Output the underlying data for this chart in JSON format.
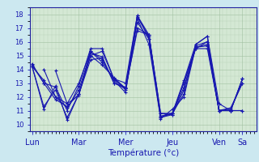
{
  "title": "Température (°c)",
  "bg_color": "#cce8f0",
  "plot_bg_color": "#d4e8d4",
  "line_color": "#1818b0",
  "marker": "+",
  "ylim": [
    9.5,
    18.5
  ],
  "yticks": [
    10,
    11,
    12,
    13,
    14,
    15,
    16,
    17,
    18
  ],
  "day_labels": [
    "Lun",
    "Mar",
    "Mer",
    "Jeu",
    "Ven",
    "Sa"
  ],
  "day_x": [
    0,
    1,
    2,
    3,
    4,
    4.5
  ],
  "series": [
    {
      "start_day": 0,
      "points": [
        [
          0,
          14.2
        ],
        [
          0.25,
          11.1
        ],
        [
          0.5,
          12.8
        ],
        [
          0.75,
          10.3
        ],
        [
          1,
          12.2
        ],
        [
          1.25,
          15.0
        ],
        [
          1.5,
          15.3
        ],
        [
          1.75,
          13.3
        ],
        [
          2,
          12.6
        ],
        [
          2.25,
          17.8
        ],
        [
          2.5,
          16.4
        ],
        [
          2.75,
          10.5
        ],
        [
          3,
          10.7
        ],
        [
          3.25,
          12.5
        ],
        [
          3.5,
          15.8
        ],
        [
          3.75,
          16.4
        ],
        [
          4,
          11.0
        ],
        [
          4.25,
          11.0
        ],
        [
          4.5,
          13.3
        ]
      ]
    },
    {
      "start_day": 0.25,
      "points": [
        [
          0.25,
          14.0
        ],
        [
          0.5,
          12.0
        ],
        [
          0.75,
          11.2
        ],
        [
          1,
          12.5
        ],
        [
          1.25,
          15.2
        ],
        [
          1.5,
          14.9
        ],
        [
          1.75,
          13.0
        ],
        [
          2,
          12.6
        ],
        [
          2.25,
          17.9
        ],
        [
          2.5,
          16.2
        ],
        [
          2.75,
          10.5
        ],
        [
          3,
          10.8
        ],
        [
          3.25,
          12.2
        ],
        [
          3.5,
          15.7
        ],
        [
          3.75,
          16.0
        ],
        [
          4,
          11.0
        ],
        [
          4.25,
          11.1
        ],
        [
          4.5,
          13.0
        ]
      ]
    },
    {
      "start_day": 0.5,
      "points": [
        [
          0.5,
          13.9
        ],
        [
          0.75,
          11.5
        ],
        [
          1,
          12.1
        ],
        [
          1.25,
          15.3
        ],
        [
          1.5,
          14.7
        ],
        [
          1.75,
          13.2
        ],
        [
          2,
          12.3
        ],
        [
          2.25,
          17.7
        ],
        [
          2.5,
          15.8
        ],
        [
          2.75,
          10.4
        ],
        [
          3,
          11.1
        ],
        [
          3.25,
          12.0
        ],
        [
          3.5,
          15.6
        ],
        [
          3.75,
          15.7
        ],
        [
          4,
          11.0
        ],
        [
          4.25,
          11.2
        ],
        [
          4.5,
          13.0
        ]
      ]
    },
    {
      "start_day": 0,
      "points": [
        [
          0,
          14.2
        ],
        [
          0.25,
          11.3
        ],
        [
          0.5,
          12.5
        ],
        [
          0.75,
          10.5
        ],
        [
          1,
          12.2
        ],
        [
          1.25,
          14.7
        ],
        [
          1.5,
          14.8
        ],
        [
          1.75,
          13.0
        ],
        [
          2,
          12.7
        ],
        [
          2.25,
          17.4
        ],
        [
          2.5,
          16.2
        ],
        [
          2.75,
          10.5
        ],
        [
          3,
          10.8
        ],
        [
          3.25,
          12.7
        ],
        [
          3.5,
          15.5
        ],
        [
          3.75,
          15.5
        ],
        [
          4,
          11.0
        ],
        [
          4.25,
          11.0
        ],
        [
          4.5,
          13.3
        ]
      ]
    },
    {
      "start_day": 0,
      "points": [
        [
          0,
          14.4
        ],
        [
          0.25,
          13.0
        ],
        [
          0.5,
          12.7
        ],
        [
          0.75,
          11.0
        ],
        [
          1,
          12.8
        ],
        [
          1.25,
          15.5
        ],
        [
          1.5,
          15.5
        ],
        [
          1.75,
          13.3
        ],
        [
          2,
          13.0
        ],
        [
          2.25,
          17.9
        ],
        [
          2.5,
          16.5
        ],
        [
          2.75,
          10.6
        ],
        [
          3,
          10.8
        ],
        [
          3.25,
          13.2
        ],
        [
          3.5,
          15.8
        ],
        [
          3.75,
          16.4
        ],
        [
          4,
          11.5
        ],
        [
          4.25,
          11.0
        ],
        [
          4.5,
          13.3
        ]
      ]
    },
    {
      "start_day": 0,
      "points": [
        [
          0,
          14.2
        ],
        [
          0.25,
          13.2
        ],
        [
          0.5,
          12.0
        ],
        [
          0.75,
          11.5
        ],
        [
          1,
          13.0
        ],
        [
          1.25,
          15.3
        ],
        [
          1.5,
          14.5
        ],
        [
          1.75,
          13.3
        ],
        [
          2,
          12.5
        ],
        [
          2.25,
          17.0
        ],
        [
          2.5,
          16.5
        ],
        [
          2.75,
          10.8
        ],
        [
          3,
          10.8
        ],
        [
          3.25,
          13.0
        ],
        [
          3.5,
          15.5
        ],
        [
          3.75,
          16.0
        ],
        [
          4,
          11.0
        ],
        [
          4.25,
          11.0
        ],
        [
          4.5,
          11.0
        ]
      ]
    },
    {
      "start_day": 0,
      "points": [
        [
          0,
          14.3
        ],
        [
          0.25,
          13.0
        ],
        [
          0.5,
          11.8
        ],
        [
          0.75,
          11.3
        ],
        [
          1,
          12.2
        ],
        [
          1.25,
          15.0
        ],
        [
          1.5,
          14.3
        ],
        [
          1.75,
          13.4
        ],
        [
          2,
          12.6
        ],
        [
          2.25,
          16.8
        ],
        [
          2.5,
          16.5
        ],
        [
          2.75,
          10.8
        ],
        [
          3,
          10.7
        ],
        [
          3.25,
          13.1
        ],
        [
          3.5,
          15.6
        ],
        [
          3.75,
          15.8
        ],
        [
          4,
          11.0
        ],
        [
          4.25,
          11.0
        ],
        [
          4.5,
          11.0
        ]
      ]
    }
  ],
  "grid_color": "#a0c0a0",
  "spine_color": "#2020a0"
}
